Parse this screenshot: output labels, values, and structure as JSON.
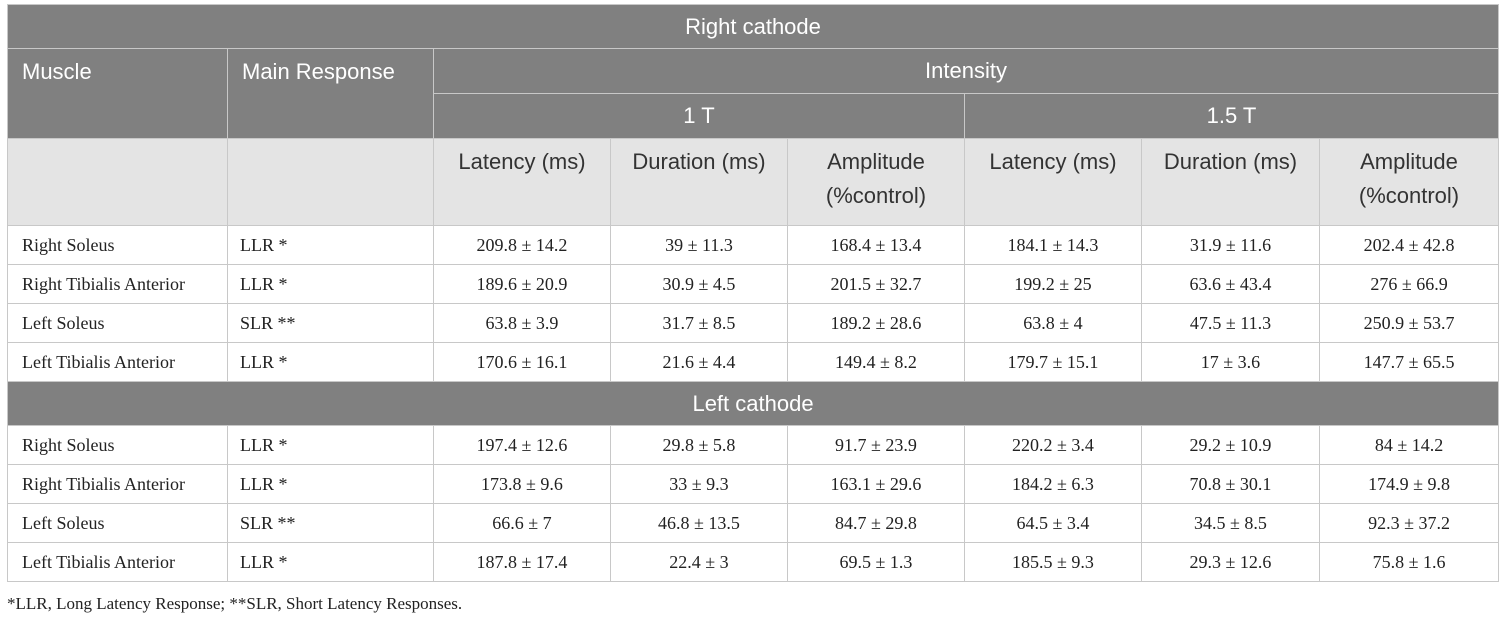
{
  "table": {
    "section_right": "Right cathode",
    "section_left": "Left cathode",
    "headers": {
      "muscle": "Muscle",
      "main_response": "Main Response",
      "intensity": "Intensity",
      "t1": "1 T",
      "t15": "1.5 T",
      "latency": "Latency (ms)",
      "duration": "Duration (ms)",
      "amplitude_line1": "Amplitude",
      "amplitude_line2": "(%control)"
    },
    "right_rows": [
      {
        "muscle": "Right Soleus",
        "response": "LLR *",
        "vals": [
          "209.8 ± 14.2",
          "39 ± 11.3",
          "168.4 ± 13.4",
          "184.1 ± 14.3",
          "31.9 ± 11.6",
          "202.4 ± 42.8"
        ]
      },
      {
        "muscle": "Right Tibialis Anterior",
        "response": "LLR *",
        "vals": [
          "189.6 ± 20.9",
          "30.9 ± 4.5",
          "201.5 ± 32.7",
          "199.2 ± 25",
          "63.6 ± 43.4",
          "276 ± 66.9"
        ]
      },
      {
        "muscle": "Left Soleus",
        "response": "SLR **",
        "vals": [
          "63.8 ± 3.9",
          "31.7 ± 8.5",
          "189.2 ± 28.6",
          "63.8 ± 4",
          "47.5 ± 11.3",
          "250.9 ± 53.7"
        ]
      },
      {
        "muscle": "Left Tibialis Anterior",
        "response": "LLR *",
        "vals": [
          "170.6 ± 16.1",
          "21.6 ± 4.4",
          "149.4 ± 8.2",
          "179.7 ± 15.1",
          "17 ± 3.6",
          "147.7 ± 65.5"
        ]
      }
    ],
    "left_rows": [
      {
        "muscle": "Right Soleus",
        "response": "LLR *",
        "vals": [
          "197.4 ± 12.6",
          "29.8 ± 5.8",
          "91.7 ± 23.9",
          "220.2 ± 3.4",
          "29.2 ± 10.9",
          "84 ± 14.2"
        ]
      },
      {
        "muscle": "Right Tibialis Anterior",
        "response": "LLR *",
        "vals": [
          "173.8 ± 9.6",
          "33 ± 9.3",
          "163.1 ± 29.6",
          "184.2 ± 6.3",
          "70.8 ± 30.1",
          "174.9 ± 9.8"
        ]
      },
      {
        "muscle": "Left Soleus",
        "response": "SLR **",
        "vals": [
          "66.6 ± 7",
          "46.8 ± 13.5",
          "84.7 ± 29.8",
          "64.5 ± 3.4",
          "34.5 ± 8.5",
          "92.3 ± 37.2"
        ]
      },
      {
        "muscle": "Left Tibialis Anterior",
        "response": "LLR *",
        "vals": [
          "187.8 ± 17.4",
          "22.4 ± 3",
          "69.5 ± 1.3",
          "185.5 ± 9.3",
          "29.3 ± 12.6",
          "75.8 ± 1.6"
        ]
      }
    ]
  },
  "footnote": "*LLR, Long Latency Response; **SLR, Short Latency Responses."
}
